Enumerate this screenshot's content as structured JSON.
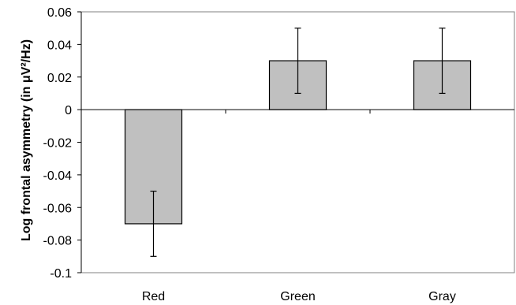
{
  "chart_data": {
    "type": "bar",
    "title": "",
    "xlabel": "",
    "ylabel": "Log frontal asymmetry (in μV²/Hz)",
    "categories": [
      "Red",
      "Green",
      "Gray"
    ],
    "values": [
      -0.07,
      0.03,
      0.03
    ],
    "error_low": [
      -0.09,
      0.01,
      0.01
    ],
    "error_high": [
      -0.05,
      0.05,
      0.05
    ],
    "ylim": [
      -0.1,
      0.06
    ],
    "yticks": [
      0.06,
      0.04,
      0.02,
      0,
      -0.02,
      -0.04,
      -0.06,
      -0.08,
      -0.1
    ],
    "ytick_labels": [
      "0.06",
      "0.04",
      "0.02",
      "0",
      "-0.02",
      "-0.04",
      "-0.06",
      "-0.08",
      "-0.1"
    ],
    "grid": false,
    "bar_color": "#c0c0c0",
    "bar_edge_color": "#000000"
  }
}
